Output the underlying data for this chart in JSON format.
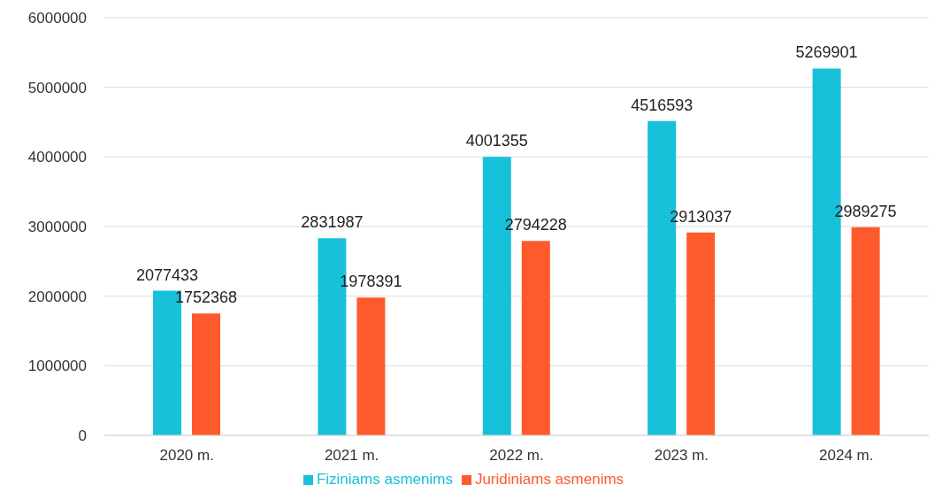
{
  "chart_data": {
    "type": "bar",
    "categories": [
      "2020 m.",
      "2021 m.",
      "2022 m.",
      "2023 m.",
      "2024 m."
    ],
    "series": [
      {
        "name": "Fiziniams asmenims",
        "color": "#17c1d9",
        "values": [
          2077433,
          2831987,
          4001355,
          4516593,
          5269901
        ]
      },
      {
        "name": "Juridiniams asmenims",
        "color": "#ff5a2c",
        "values": [
          1752368,
          1978391,
          2794228,
          2913037,
          2989275
        ]
      }
    ],
    "ylim": [
      0,
      6000000
    ],
    "yticks": [
      0,
      1000000,
      2000000,
      3000000,
      4000000,
      5000000,
      6000000
    ],
    "grid": "y",
    "legend": "bottom",
    "data_labels": true
  }
}
